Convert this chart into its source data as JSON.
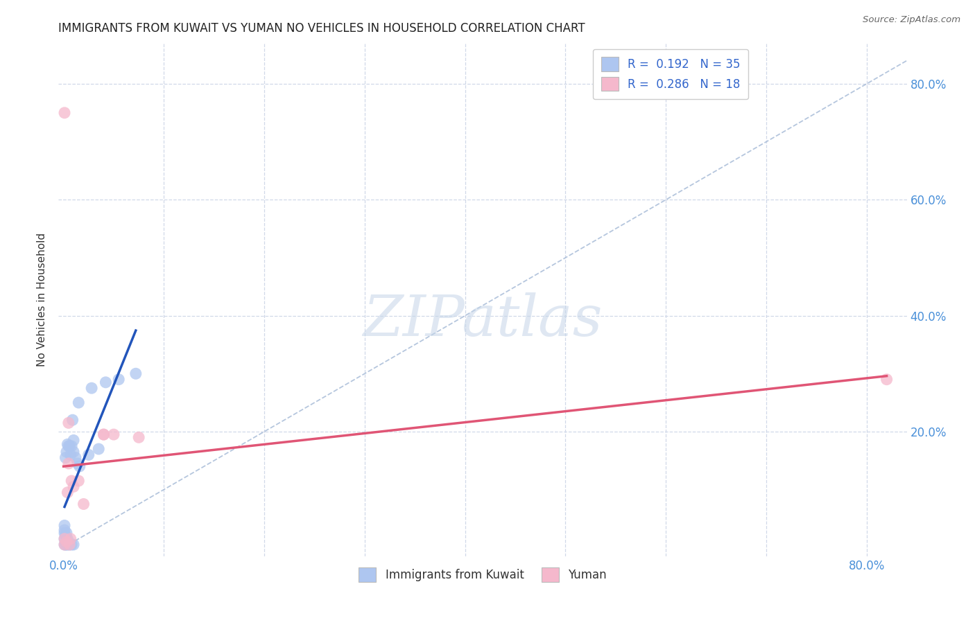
{
  "title": "IMMIGRANTS FROM KUWAIT VS YUMAN NO VEHICLES IN HOUSEHOLD CORRELATION CHART",
  "source": "Source: ZipAtlas.com",
  "tick_color": "#4a90d9",
  "ylabel": "No Vehicles in Household",
  "bg_color": "#ffffff",
  "grid_color": "#d0d8e8",
  "watermark_text": "ZIPatlas",
  "blue_scatter_color": "#aec6f0",
  "pink_scatter_color": "#f5b8cc",
  "blue_line_color": "#2255bb",
  "pink_line_color": "#e05575",
  "dashed_line_color": "#a8bcd8",
  "kuwait_points_x": [
    0.001,
    0.001,
    0.001,
    0.001,
    0.001,
    0.002,
    0.002,
    0.002,
    0.003,
    0.003,
    0.003,
    0.003,
    0.004,
    0.004,
    0.004,
    0.005,
    0.006,
    0.006,
    0.007,
    0.008,
    0.008,
    0.009,
    0.01,
    0.01,
    0.01,
    0.012,
    0.014,
    0.015,
    0.016,
    0.025,
    0.028,
    0.035,
    0.042,
    0.055,
    0.072
  ],
  "kuwait_points_y": [
    0.005,
    0.015,
    0.025,
    0.03,
    0.038,
    0.005,
    0.02,
    0.155,
    0.005,
    0.015,
    0.025,
    0.165,
    0.005,
    0.015,
    0.178,
    0.175,
    0.005,
    0.175,
    0.16,
    0.005,
    0.175,
    0.22,
    0.005,
    0.165,
    0.185,
    0.155,
    0.145,
    0.25,
    0.14,
    0.16,
    0.275,
    0.17,
    0.285,
    0.29,
    0.3
  ],
  "yuman_points_x": [
    0.001,
    0.001,
    0.001,
    0.003,
    0.004,
    0.005,
    0.005,
    0.006,
    0.007,
    0.008,
    0.01,
    0.015,
    0.02,
    0.04,
    0.04,
    0.05,
    0.075,
    0.82
  ],
  "yuman_points_y": [
    0.005,
    0.015,
    0.75,
    0.01,
    0.095,
    0.145,
    0.215,
    0.005,
    0.015,
    0.115,
    0.105,
    0.115,
    0.075,
    0.195,
    0.195,
    0.195,
    0.19,
    0.29
  ],
  "xlim": [
    -0.005,
    0.84
  ],
  "ylim": [
    -0.015,
    0.87
  ],
  "legend1_label": "R =  0.192   N = 35",
  "legend2_label": "R =  0.286   N = 18",
  "bottom_legend1": "Immigrants from Kuwait",
  "bottom_legend2": "Yuman"
}
